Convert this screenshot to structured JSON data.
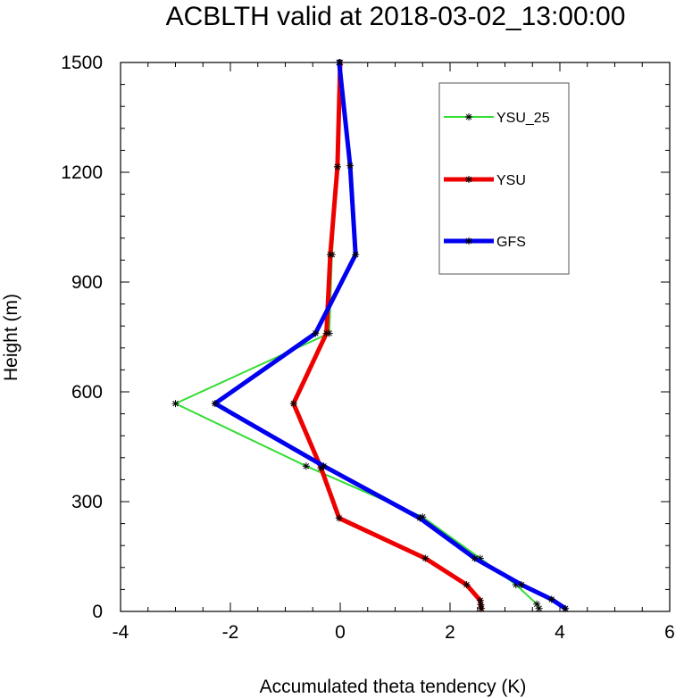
{
  "chart_data": {
    "type": "line",
    "title": "ACBLTH valid at 2018-03-02_13:00:00",
    "xlabel": "Accumulated theta tendency (K)",
    "ylabel": "Height (m)",
    "xlim": [
      -4,
      6
    ],
    "ylim": [
      0,
      1500
    ],
    "x_ticks": [
      -4,
      -2,
      0,
      2,
      4,
      6
    ],
    "x_tick_labels": [
      "-4",
      "-2",
      "0",
      "2",
      "4",
      "6"
    ],
    "y_ticks": [
      0,
      300,
      600,
      900,
      1200,
      1500
    ],
    "y_tick_labels": [
      "0",
      "300",
      "600",
      "900",
      "1200",
      "1500"
    ],
    "grid": false,
    "legend_position": "top-right",
    "series": [
      {
        "name": "YSU_25",
        "color": "#33dd33",
        "width": 2,
        "points": [
          [
            3.62,
            8
          ],
          [
            3.58,
            20
          ],
          [
            3.2,
            73
          ],
          [
            2.55,
            145
          ],
          [
            1.5,
            258
          ],
          [
            -0.62,
            397
          ],
          [
            -3.0,
            568
          ],
          [
            -0.2,
            760
          ],
          [
            -0.15,
            975
          ],
          [
            -0.05,
            1215
          ],
          [
            -0.02,
            1500
          ]
        ]
      },
      {
        "name": "YSU",
        "color": "#ee0000",
        "width": 5,
        "points": [
          [
            2.57,
            8
          ],
          [
            2.56,
            18
          ],
          [
            2.55,
            30
          ],
          [
            2.3,
            73
          ],
          [
            1.55,
            145
          ],
          [
            -0.02,
            255
          ],
          [
            -0.35,
            392
          ],
          [
            -0.85,
            568
          ],
          [
            -0.25,
            760
          ],
          [
            -0.18,
            975
          ],
          [
            -0.05,
            1215
          ],
          [
            0.0,
            1500
          ]
        ]
      },
      {
        "name": "GFS",
        "color": "#0000ee",
        "width": 5,
        "points": [
          [
            4.1,
            8
          ],
          [
            3.85,
            33
          ],
          [
            3.3,
            73
          ],
          [
            2.45,
            145
          ],
          [
            1.45,
            255
          ],
          [
            -0.3,
            397
          ],
          [
            -2.28,
            568
          ],
          [
            -0.45,
            760
          ],
          [
            0.28,
            975
          ],
          [
            0.18,
            1218
          ],
          [
            -0.02,
            1500
          ]
        ]
      }
    ]
  }
}
